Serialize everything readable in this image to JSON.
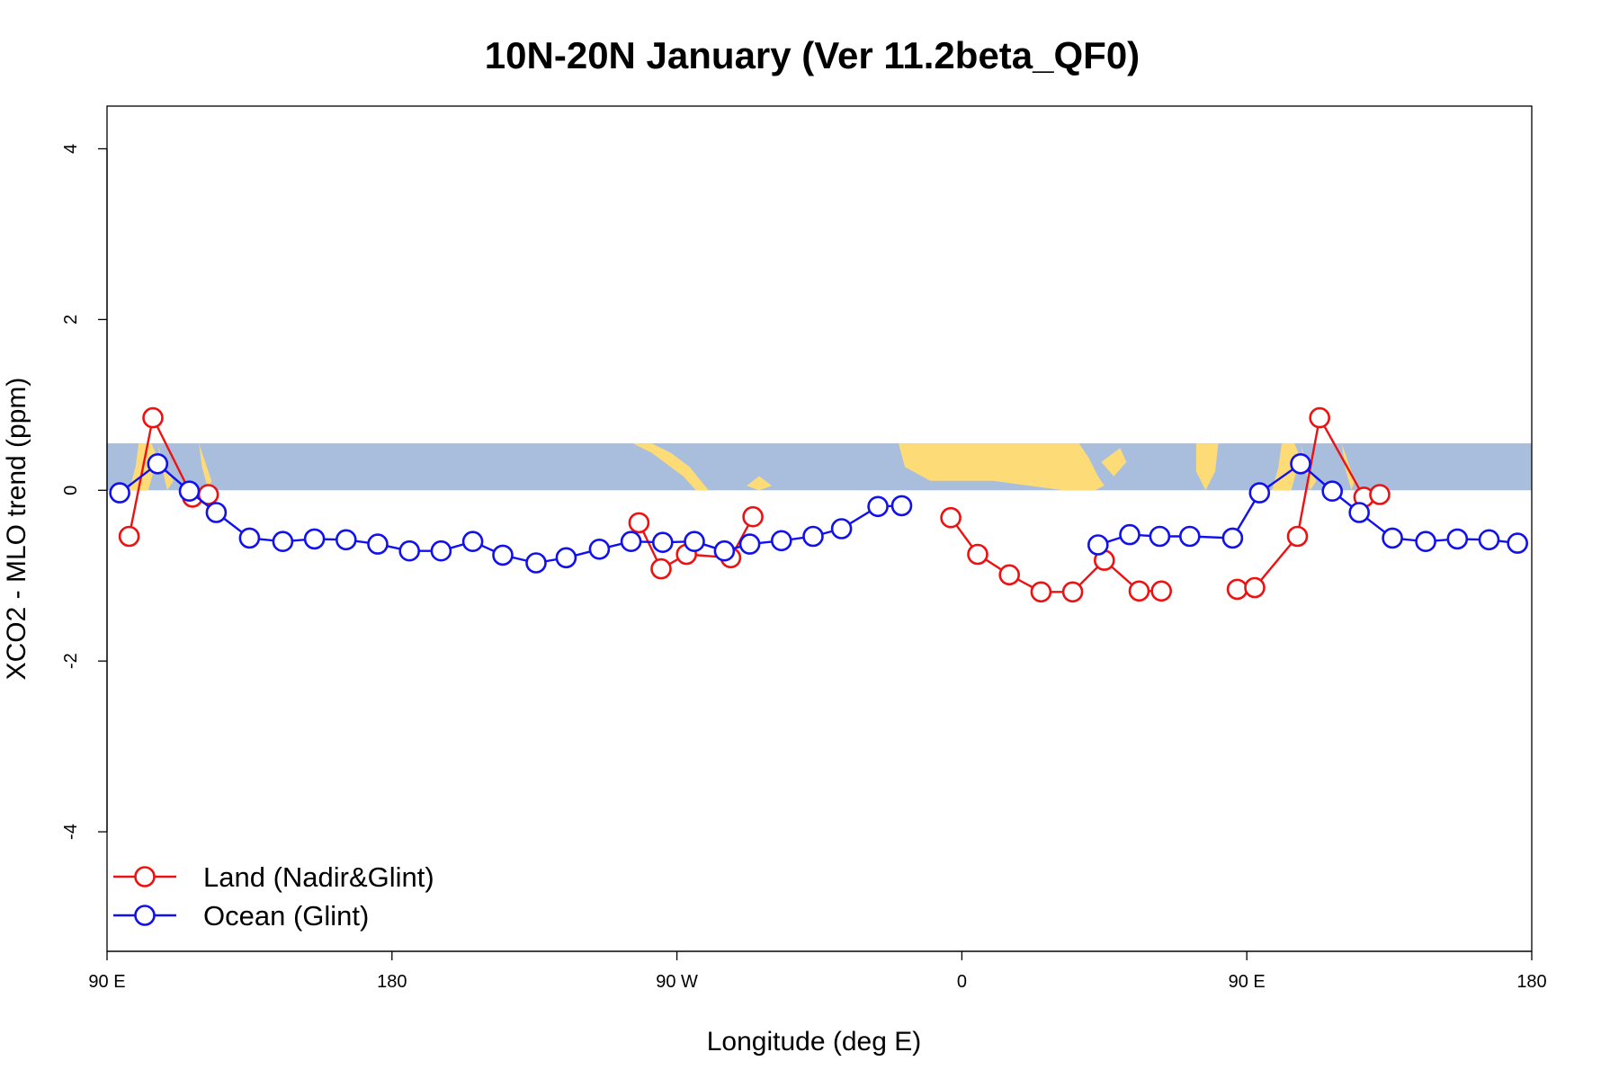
{
  "chart_data": {
    "type": "line",
    "title": "10N-20N January (Ver 11.2beta_QF0)",
    "xlabel": "Longitude (deg E)",
    "ylabel": "XCO2 - MLO trend (ppm)",
    "xlim": [
      90,
      540
    ],
    "ylim": [
      -5.4,
      4.5
    ],
    "xticks": [
      {
        "value": 90,
        "label": "90 E"
      },
      {
        "value": 180,
        "label": "180"
      },
      {
        "value": 270,
        "label": "90 W"
      },
      {
        "value": 360,
        "label": "0"
      },
      {
        "value": 450,
        "label": "90 E"
      },
      {
        "value": 540,
        "label": "180"
      }
    ],
    "yticks": [
      {
        "value": -4,
        "label": "-4"
      },
      {
        "value": -2,
        "label": "-2"
      },
      {
        "value": 0,
        "label": "0"
      },
      {
        "value": 2,
        "label": "2"
      },
      {
        "value": 4,
        "label": "4"
      }
    ],
    "map_strip": {
      "ymin": 0,
      "ymax": 0.55,
      "ocean_color": "#a9bedc",
      "land_color": "#fddc78"
    },
    "legend": {
      "position": "bottom-left"
    },
    "series": [
      {
        "name": "Land (Nadir&Glint)",
        "color": "#ee1111",
        "segments": [
          [
            [
              97,
              -0.54
            ],
            [
              104.5,
              0.85
            ],
            [
              117,
              -0.08
            ],
            [
              122,
              -0.05
            ]
          ],
          [
            [
              258,
              -0.38
            ],
            [
              265,
              -0.92
            ],
            [
              273,
              -0.75
            ],
            [
              287,
              -0.79
            ],
            [
              294,
              -0.31
            ]
          ],
          [
            [
              356.5,
              -0.32
            ],
            [
              365,
              -0.75
            ],
            [
              375,
              -0.99
            ],
            [
              385,
              -1.19
            ],
            [
              395,
              -1.19
            ],
            [
              405,
              -0.82
            ],
            [
              416,
              -1.18
            ],
            [
              423,
              -1.18
            ]
          ],
          [
            [
              447,
              -1.16
            ],
            [
              452.5,
              -1.14
            ],
            [
              466,
              -0.54
            ],
            [
              473,
              0.85
            ],
            [
              487,
              -0.08
            ],
            [
              492,
              -0.05
            ]
          ]
        ]
      },
      {
        "name": "Ocean (Glint)",
        "color": "#1111ee",
        "segments": [
          [
            [
              94,
              -0.03
            ],
            [
              106,
              0.31
            ],
            [
              116,
              -0.01
            ],
            [
              124.5,
              -0.26
            ],
            [
              135,
              -0.56
            ],
            [
              145.5,
              -0.6
            ],
            [
              155.5,
              -0.57
            ],
            [
              165.5,
              -0.58
            ],
            [
              175.5,
              -0.63
            ],
            [
              185.5,
              -0.71
            ],
            [
              195.5,
              -0.71
            ],
            [
              205.5,
              -0.6
            ],
            [
              215,
              -0.76
            ],
            [
              225.5,
              -0.85
            ],
            [
              235,
              -0.79
            ],
            [
              245.5,
              -0.69
            ],
            [
              255.5,
              -0.6
            ],
            [
              265.5,
              -0.61
            ],
            [
              275.5,
              -0.6
            ],
            [
              285,
              -0.71
            ],
            [
              293,
              -0.63
            ],
            [
              303,
              -0.59
            ],
            [
              313,
              -0.54
            ],
            [
              322,
              -0.45
            ],
            [
              333.5,
              -0.19
            ],
            [
              341,
              -0.18
            ]
          ],
          [
            [
              403,
              -0.64
            ],
            [
              413,
              -0.52
            ],
            [
              422.5,
              -0.54
            ],
            [
              432,
              -0.54
            ],
            [
              445.5,
              -0.56
            ],
            [
              454,
              -0.03
            ],
            [
              467,
              0.31
            ],
            [
              477,
              -0.01
            ],
            [
              485.5,
              -0.26
            ],
            [
              496,
              -0.56
            ],
            [
              506.5,
              -0.6
            ],
            [
              516.5,
              -0.57
            ],
            [
              526.5,
              -0.58
            ],
            [
              535.5,
              -0.62
            ]
          ]
        ]
      }
    ]
  }
}
